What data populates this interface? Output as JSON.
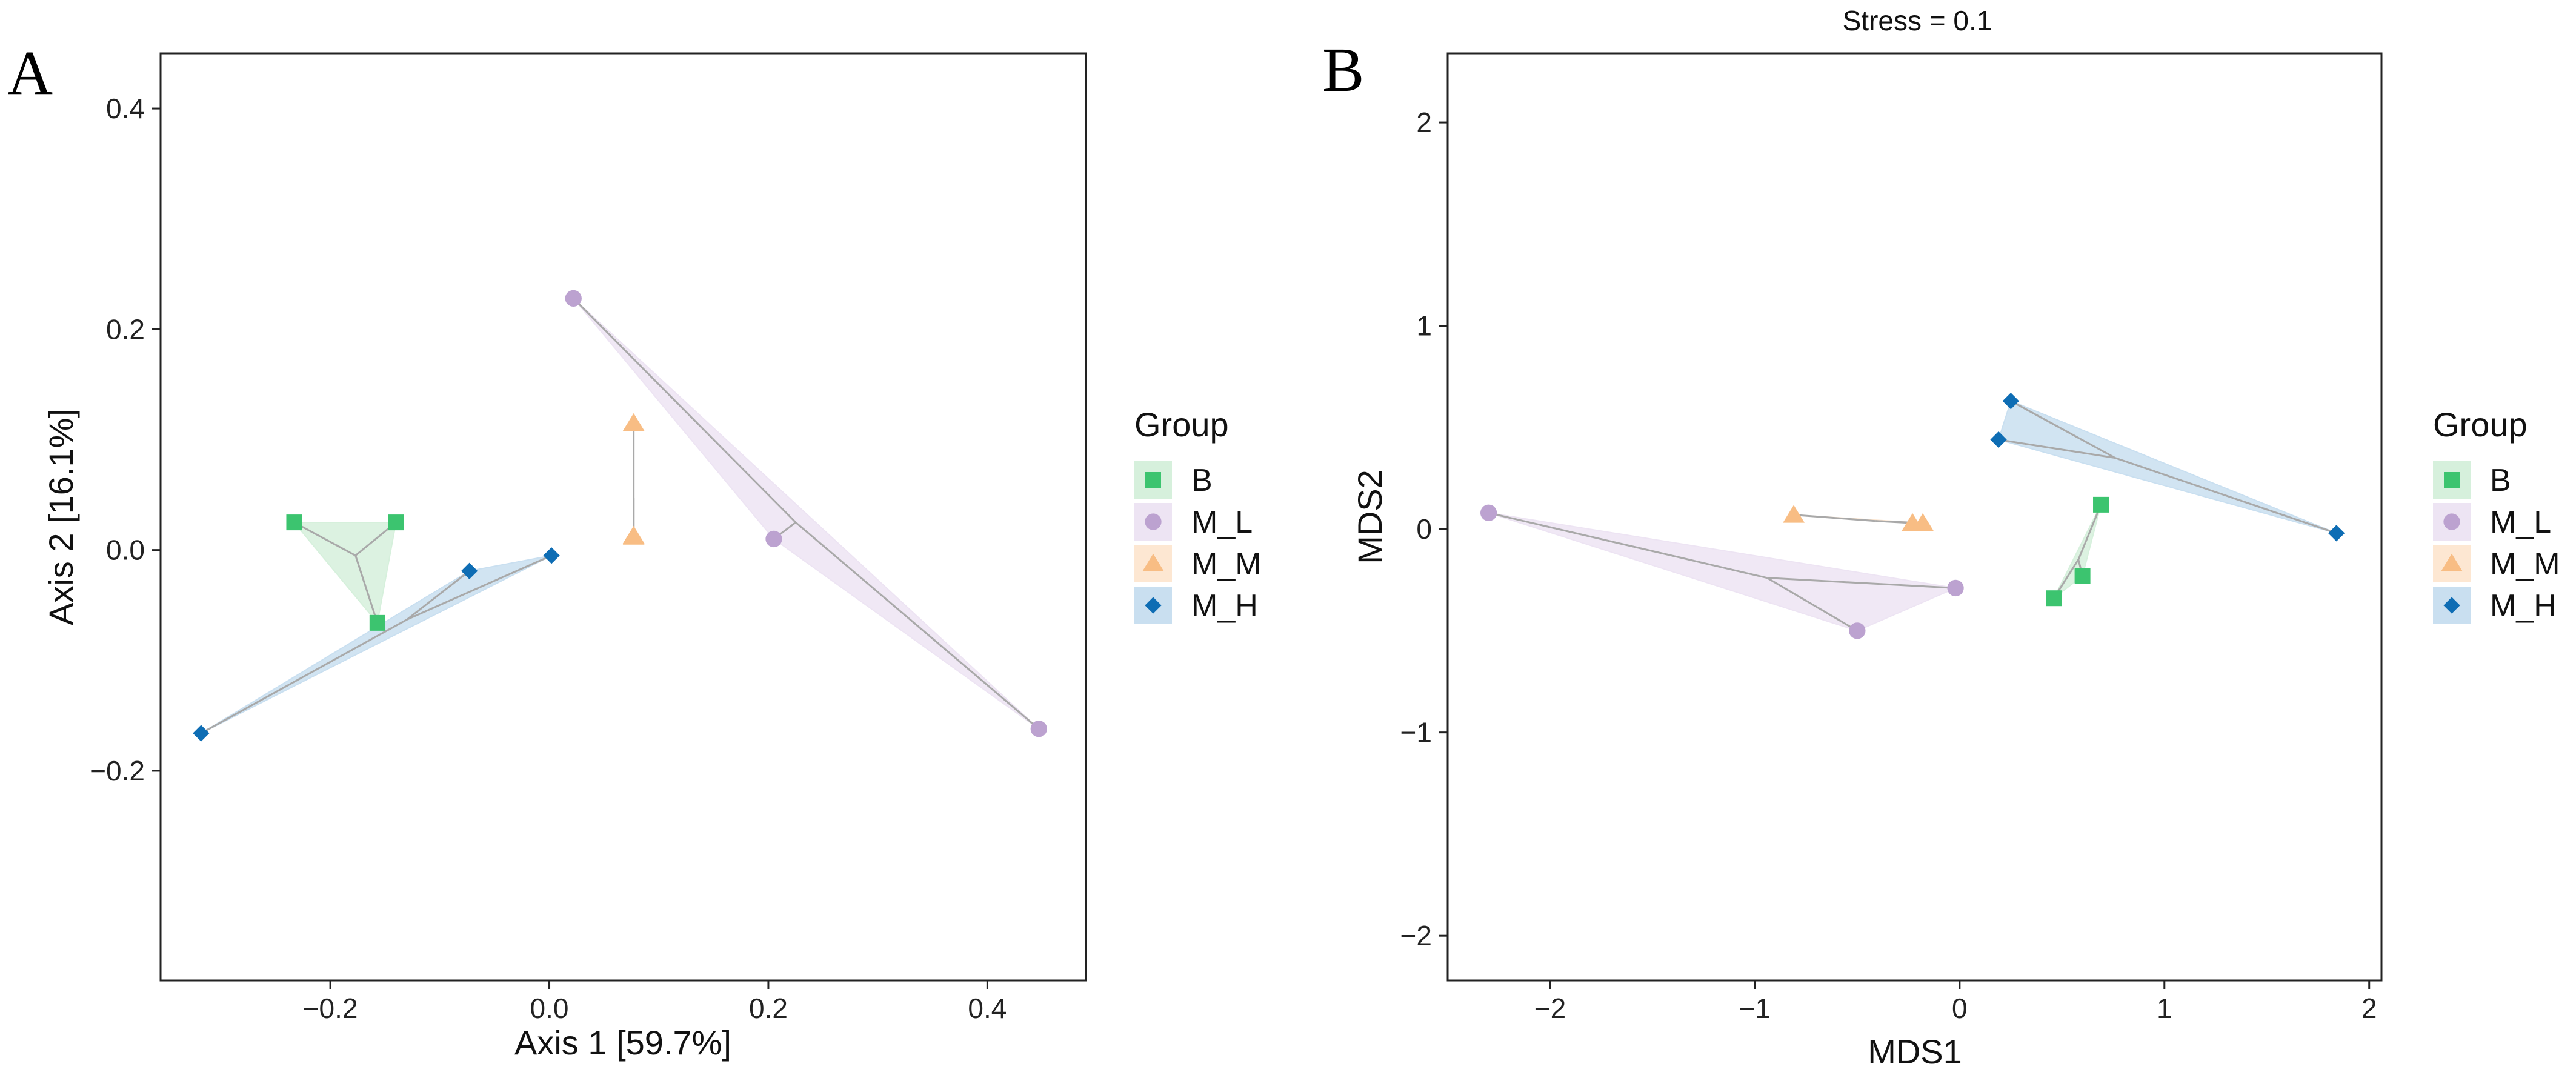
{
  "chart_data": [
    {
      "type": "scatter",
      "panel_label": "A",
      "title": "",
      "xlabel": "Axis 1 [59.7%]",
      "ylabel": "Axis 2 [16.1%]",
      "xlim": [
        -0.355,
        0.49
      ],
      "ylim": [
        -0.39,
        0.45
      ],
      "xticks": [
        -0.2,
        0.0,
        0.2,
        0.4
      ],
      "xtick_labels": [
        "−0.2",
        "0.0",
        "0.2",
        "0.4"
      ],
      "yticks": [
        -0.2,
        0.0,
        0.2,
        0.4
      ],
      "ytick_labels": [
        "−0.2",
        "0.0",
        "0.2",
        "0.4"
      ],
      "grid": false,
      "series": [
        {
          "name": "B",
          "points": [
            [
              -0.233,
              0.025
            ],
            [
              -0.14,
              0.025
            ],
            [
              -0.157,
              -0.066
            ]
          ],
          "centroid": [
            -0.177,
            -0.005
          ]
        },
        {
          "name": "M_L",
          "points": [
            [
              0.022,
              0.228
            ],
            [
              0.205,
              0.01
            ],
            [
              0.447,
              -0.162
            ]
          ],
          "centroid": [
            0.225,
            0.025
          ]
        },
        {
          "name": "M_M",
          "points": [
            [
              0.077,
              0.115
            ],
            [
              0.077,
              0.013
            ],
            [
              0.077,
              0.012
            ]
          ],
          "centroid": [
            0.077,
            0.047
          ]
        },
        {
          "name": "M_H",
          "points": [
            [
              -0.318,
              -0.166
            ],
            [
              -0.073,
              -0.019
            ],
            [
              0.002,
              -0.005
            ]
          ],
          "centroid": [
            -0.13,
            -0.063
          ]
        }
      ]
    },
    {
      "type": "scatter",
      "panel_label": "B",
      "title": "Stress = 0.1",
      "xlabel": "MDS1",
      "ylabel": "MDS2",
      "xlim": [
        -2.5,
        2.06
      ],
      "ylim": [
        -2.22,
        2.34
      ],
      "xticks": [
        -2,
        -1,
        0,
        1,
        2
      ],
      "xtick_labels": [
        "−2",
        "−1",
        "0",
        "1",
        "2"
      ],
      "yticks": [
        -2,
        -1,
        0,
        1,
        2
      ],
      "ytick_labels": [
        "−2",
        "−1",
        "0",
        "1",
        "2"
      ],
      "grid": false,
      "series": [
        {
          "name": "B",
          "points": [
            [
              0.69,
              0.12
            ],
            [
              0.6,
              -0.23
            ],
            [
              0.46,
              -0.34
            ]
          ],
          "centroid": [
            0.58,
            -0.15
          ]
        },
        {
          "name": "M_L",
          "points": [
            [
              -2.3,
              0.08
            ],
            [
              -0.5,
              -0.5
            ],
            [
              -0.02,
              -0.29
            ]
          ],
          "centroid": [
            -0.94,
            -0.24
          ]
        },
        {
          "name": "M_M",
          "points": [
            [
              -0.81,
              0.07
            ],
            [
              -0.23,
              0.03
            ],
            [
              -0.18,
              0.03
            ]
          ],
          "centroid": [
            -0.41,
            0.04
          ]
        },
        {
          "name": "M_H",
          "points": [
            [
              0.25,
              0.63
            ],
            [
              0.19,
              0.44
            ],
            [
              1.84,
              -0.02
            ]
          ],
          "centroid": [
            0.76,
            0.35
          ]
        }
      ]
    }
  ],
  "legend": {
    "title": "Group",
    "entries": [
      {
        "name": "B",
        "marker": "square",
        "color": "#3cc46f",
        "fill": "#d6f0dc"
      },
      {
        "name": "M_L",
        "marker": "circle",
        "color": "#bca2d0",
        "fill": "#ede4f3"
      },
      {
        "name": "M_M",
        "marker": "triangle",
        "color": "#f8bd84",
        "fill": "#fde7d2"
      },
      {
        "name": "M_H",
        "marker": "diamond",
        "color": "#0e6db4",
        "fill": "#c9dff0"
      }
    ]
  },
  "style": {
    "spider_color": "#a9a9a9",
    "axis_color": "#222222"
  }
}
